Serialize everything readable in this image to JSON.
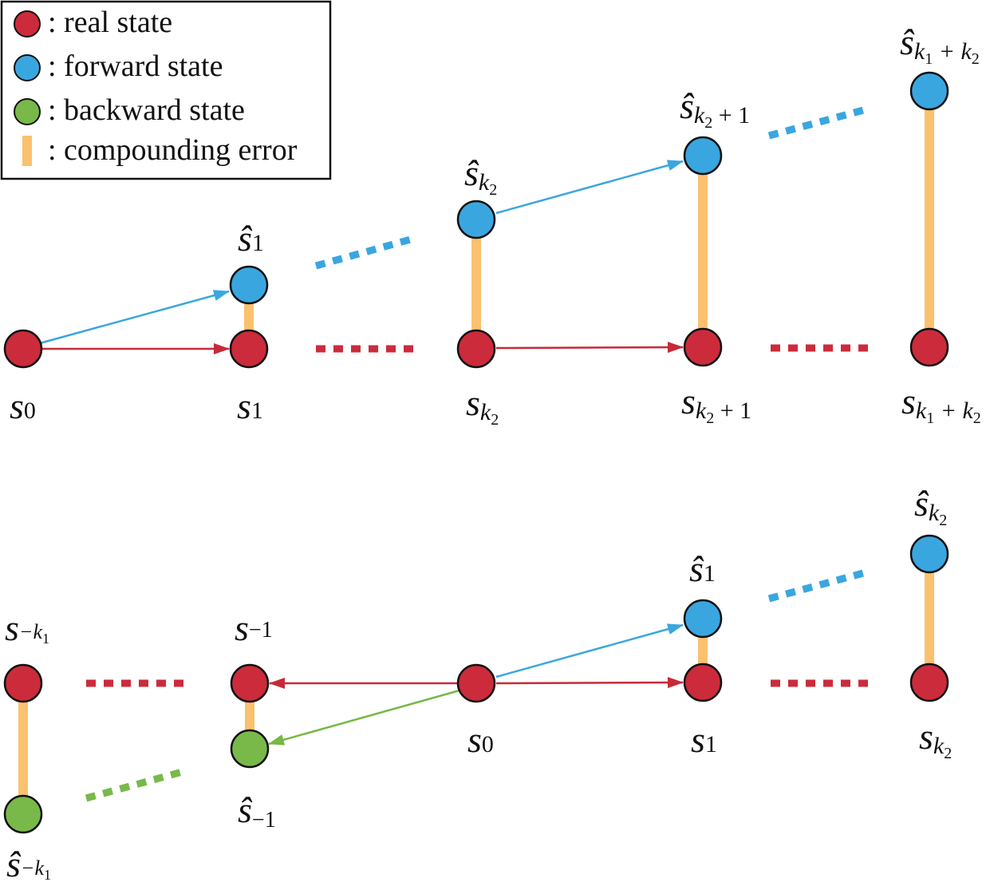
{
  "legend": {
    "items": [
      {
        "marker": "red-circle",
        "text": ": real state"
      },
      {
        "marker": "blue-circle",
        "text": ": forward state"
      },
      {
        "marker": "green-circle",
        "text": ": backward state"
      },
      {
        "marker": "orange-bar",
        "text": ": compounding error"
      }
    ]
  },
  "colors": {
    "real": "#cc2b3b",
    "forward": "#3aa6e0",
    "backward": "#79b94a",
    "error": "#fbc16e",
    "red_arrow": "#c62a39",
    "blue_arrow": "#3aa6e0",
    "green_arrow": "#76b843"
  },
  "top": {
    "labels": {
      "s0": {
        "base": "s",
        "sub": "0"
      },
      "s1": {
        "base": "s",
        "sub": "1"
      },
      "sk2": {
        "base": "s",
        "sub": "k",
        "subsub": "2"
      },
      "sk2p1": {
        "base": "s",
        "sub": "k",
        "subsub": "2",
        "suffix": " + 1"
      },
      "sk1k2": {
        "base": "s",
        "sub": "k",
        "subsub": "1",
        "suffix": " + k",
        "suffixsub": "2"
      },
      "hs1": {
        "base": "ŝ",
        "sub": "1"
      },
      "hsk2": {
        "base": "ŝ",
        "sub": "k",
        "subsub": "2"
      },
      "hsk2p1": {
        "base": "ŝ",
        "sub": "k",
        "subsub": "2",
        "suffix": " + 1"
      },
      "hsk1k2": {
        "base": "ŝ",
        "sub": "k",
        "subsub": "1",
        "suffix": " + k",
        "suffixsub": "2"
      }
    }
  },
  "bottom": {
    "labels": {
      "smk1": {
        "base": "s",
        "sub": "−k",
        "subsub": "1"
      },
      "sm1": {
        "base": "s",
        "sub": "−1"
      },
      "s0": {
        "base": "s",
        "sub": "0"
      },
      "s1": {
        "base": "s",
        "sub": "1"
      },
      "sk2": {
        "base": "s",
        "sub": "k",
        "subsub": "2"
      },
      "hs1": {
        "base": "ŝ",
        "sub": "1"
      },
      "hsk2": {
        "base": "ŝ",
        "sub": "k",
        "subsub": "2"
      },
      "hsm1": {
        "base": "ŝ",
        "sub": "−1"
      },
      "hsmk1": {
        "base": "ŝ",
        "sub": "−k",
        "subsub": "1"
      }
    }
  }
}
